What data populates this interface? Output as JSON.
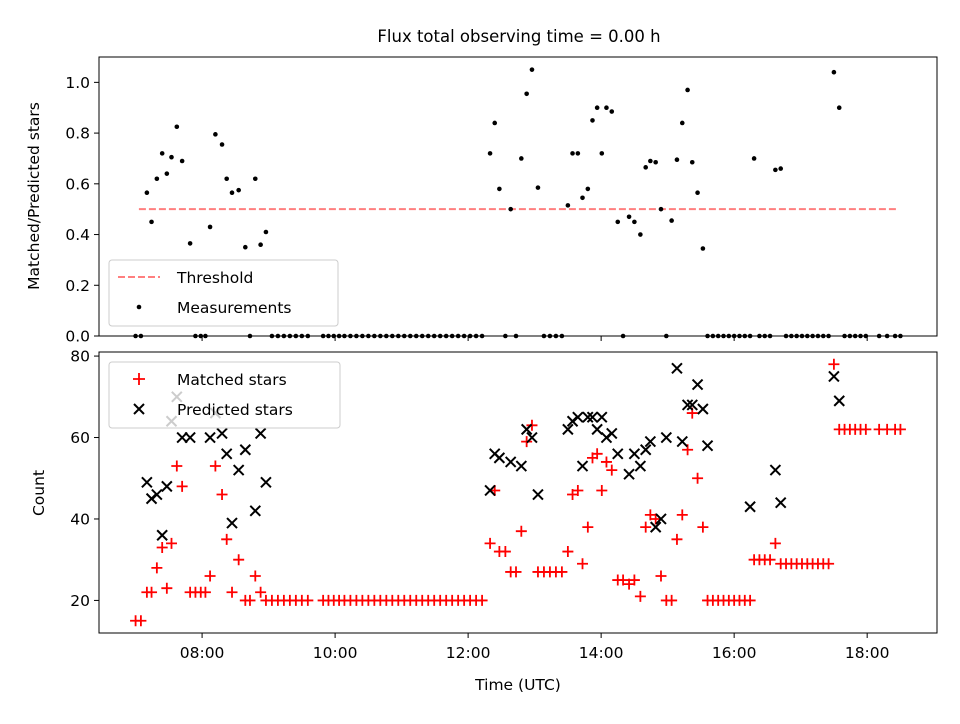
{
  "figure": {
    "title": "Flux total observing time = 0.00 h",
    "xlabel": "Time (UTC)"
  },
  "chart_data": [
    {
      "type": "scatter",
      "title": "Flux total observing time = 0.00 h",
      "xlabel": "",
      "ylabel": "Matched/Predicted stars",
      "x_unit": "hours UTC",
      "xlim": [
        6.45,
        19.05
      ],
      "ylim": [
        0.0,
        1.1
      ],
      "x_ticks": [
        8,
        10,
        12,
        14,
        16,
        18
      ],
      "x_tick_labels": [
        "08:00",
        "10:00",
        "12:00",
        "14:00",
        "16:00",
        "18:00"
      ],
      "y_ticks": [
        0.0,
        0.2,
        0.4,
        0.6,
        0.8,
        1.0
      ],
      "y_tick_labels": [
        "0.0",
        "0.2",
        "0.4",
        "0.6",
        "0.8",
        "1.0"
      ],
      "grid": false,
      "legend": "lower-left",
      "series": [
        {
          "name": "Threshold",
          "style": "dashed-line",
          "color": "#ff7f7f",
          "x": [
            7.05,
            18.45
          ],
          "y": [
            0.5,
            0.5
          ]
        },
        {
          "name": "Measurements",
          "style": "dot",
          "color": "#000000",
          "x": [
            7.0,
            7.08,
            7.17,
            7.24,
            7.32,
            7.4,
            7.47,
            7.54,
            7.62,
            7.7,
            7.82,
            7.9,
            7.98,
            8.05,
            8.12,
            8.2,
            8.3,
            8.37,
            8.45,
            8.55,
            8.65,
            8.72,
            8.8,
            8.88,
            8.96,
            9.05,
            9.14,
            9.23,
            9.32,
            9.41,
            9.5,
            9.59,
            9.82,
            9.9,
            9.98,
            10.06,
            10.14,
            10.23,
            10.32,
            10.41,
            10.5,
            10.59,
            10.68,
            10.77,
            10.86,
            10.95,
            11.04,
            11.13,
            11.22,
            11.31,
            11.4,
            11.49,
            11.58,
            11.67,
            11.76,
            11.85,
            11.94,
            12.03,
            12.12,
            12.21,
            12.33,
            12.4,
            12.47,
            12.56,
            12.64,
            12.72,
            12.8,
            12.88,
            12.96,
            13.05,
            13.14,
            13.23,
            13.32,
            13.41,
            13.5,
            13.57,
            13.65,
            13.72,
            13.8,
            13.87,
            13.94,
            14.01,
            14.08,
            14.16,
            14.25,
            14.33,
            14.42,
            14.5,
            14.59,
            14.67,
            14.74,
            14.82,
            14.9,
            14.98,
            15.06,
            15.14,
            15.22,
            15.3,
            15.37,
            15.45,
            15.53,
            15.6,
            15.68,
            15.76,
            15.84,
            15.92,
            16.0,
            16.08,
            16.16,
            16.24,
            16.3,
            16.38,
            16.46,
            16.54,
            16.62,
            16.7,
            16.78,
            16.86,
            16.94,
            17.02,
            17.1,
            17.18,
            17.26,
            17.34,
            17.42,
            17.5,
            17.58,
            17.66,
            17.74,
            17.82,
            17.9,
            17.98,
            18.18,
            18.3,
            18.42,
            18.5
          ],
          "y": [
            0.0,
            0.0,
            0.565,
            0.45,
            0.62,
            0.72,
            0.64,
            0.705,
            0.825,
            0.69,
            0.365,
            0.0,
            0.0,
            0.0,
            0.43,
            0.795,
            0.755,
            0.62,
            0.565,
            0.575,
            0.35,
            0.0,
            0.62,
            0.36,
            0.41,
            0.0,
            0.0,
            0.0,
            0.0,
            0.0,
            0.0,
            0.0,
            0.0,
            0.0,
            0.0,
            0.0,
            0.0,
            0.0,
            0.0,
            0.0,
            0.0,
            0.0,
            0.0,
            0.0,
            0.0,
            0.0,
            0.0,
            0.0,
            0.0,
            0.0,
            0.0,
            0.0,
            0.0,
            0.0,
            0.0,
            0.0,
            0.0,
            0.0,
            0.0,
            0.0,
            0.72,
            0.84,
            0.58,
            0.0,
            0.5,
            0.0,
            0.7,
            0.955,
            1.05,
            0.585,
            0.0,
            0.0,
            0.0,
            0.0,
            0.515,
            0.72,
            0.72,
            0.545,
            0.58,
            0.85,
            0.9,
            0.72,
            0.9,
            0.885,
            0.45,
            0.0,
            0.47,
            0.45,
            0.4,
            0.665,
            0.69,
            0.685,
            0.5,
            0.0,
            0.455,
            0.695,
            0.84,
            0.97,
            0.685,
            0.565,
            0.345,
            0.0,
            0.0,
            0.0,
            0.0,
            0.0,
            0.0,
            0.0,
            0.0,
            0.0,
            0.7,
            0.0,
            0.0,
            0.0,
            0.655,
            0.66,
            0.0,
            0.0,
            0.0,
            0.0,
            0.0,
            0.0,
            0.0,
            0.0,
            0.0,
            1.04,
            0.9,
            0.0,
            0.0,
            0.0,
            0.0,
            0.0,
            0.0,
            0.0,
            0.0,
            0.0
          ]
        }
      ]
    },
    {
      "type": "scatter",
      "title": "",
      "xlabel": "Time (UTC)",
      "ylabel": "Count",
      "x_unit": "hours UTC",
      "xlim": [
        6.45,
        19.05
      ],
      "ylim": [
        12,
        81
      ],
      "x_ticks": [
        8,
        10,
        12,
        14,
        16,
        18
      ],
      "x_tick_labels": [
        "08:00",
        "10:00",
        "12:00",
        "14:00",
        "16:00",
        "18:00"
      ],
      "y_ticks": [
        20,
        40,
        60,
        80
      ],
      "y_tick_labels": [
        "20",
        "40",
        "60",
        "80"
      ],
      "grid": false,
      "legend": "top-left",
      "series": [
        {
          "name": "Matched stars",
          "style": "plus",
          "color": "#ff0000",
          "x": [
            7.0,
            7.08,
            7.17,
            7.24,
            7.32,
            7.4,
            7.47,
            7.54,
            7.62,
            7.7,
            7.82,
            7.9,
            7.98,
            8.05,
            8.12,
            8.2,
            8.3,
            8.37,
            8.45,
            8.55,
            8.65,
            8.72,
            8.8,
            8.88,
            8.96,
            9.05,
            9.14,
            9.23,
            9.32,
            9.41,
            9.5,
            9.59,
            9.82,
            9.9,
            9.98,
            10.06,
            10.14,
            10.23,
            10.32,
            10.41,
            10.5,
            10.59,
            10.68,
            10.77,
            10.86,
            10.95,
            11.04,
            11.13,
            11.22,
            11.31,
            11.4,
            11.49,
            11.58,
            11.67,
            11.76,
            11.85,
            11.94,
            12.03,
            12.12,
            12.21,
            12.33,
            12.4,
            12.47,
            12.56,
            12.64,
            12.72,
            12.8,
            12.88,
            12.96,
            13.05,
            13.14,
            13.23,
            13.32,
            13.41,
            13.5,
            13.57,
            13.65,
            13.72,
            13.8,
            13.87,
            13.94,
            14.01,
            14.08,
            14.16,
            14.25,
            14.33,
            14.42,
            14.5,
            14.59,
            14.67,
            14.74,
            14.82,
            14.9,
            14.98,
            15.06,
            15.14,
            15.22,
            15.3,
            15.37,
            15.45,
            15.53,
            15.6,
            15.68,
            15.76,
            15.84,
            15.92,
            16.0,
            16.08,
            16.16,
            16.24,
            16.3,
            16.38,
            16.46,
            16.54,
            16.62,
            16.7,
            16.78,
            16.86,
            16.94,
            17.02,
            17.1,
            17.18,
            17.26,
            17.34,
            17.42,
            17.5,
            17.58,
            17.66,
            17.74,
            17.82,
            17.9,
            17.98,
            18.18,
            18.3,
            18.42,
            18.5
          ],
          "y": [
            15,
            15,
            22,
            22,
            28,
            33,
            23,
            34,
            53,
            48,
            22,
            22,
            22,
            22,
            26,
            53,
            46,
            35,
            22,
            30,
            20,
            20,
            26,
            22,
            20,
            20,
            20,
            20,
            20,
            20,
            20,
            20,
            20,
            20,
            20,
            20,
            20,
            20,
            20,
            20,
            20,
            20,
            20,
            20,
            20,
            20,
            20,
            20,
            20,
            20,
            20,
            20,
            20,
            20,
            20,
            20,
            20,
            20,
            20,
            20,
            34,
            47,
            32,
            32,
            27,
            27,
            37,
            59,
            63,
            27,
            27,
            27,
            27,
            27,
            32,
            46,
            47,
            29,
            38,
            55,
            56,
            47,
            54,
            52,
            25,
            25,
            24,
            25,
            21,
            38,
            41,
            40,
            26,
            20,
            20,
            35,
            41,
            57,
            66,
            50,
            38,
            20,
            20,
            20,
            20,
            20,
            20,
            20,
            20,
            20,
            30,
            30,
            30,
            30,
            34,
            29,
            29,
            29,
            29,
            29,
            29,
            29,
            29,
            29,
            29,
            78,
            62,
            62,
            62,
            62,
            62,
            62,
            62,
            62,
            62,
            62
          ]
        },
        {
          "name": "Predicted stars",
          "style": "x",
          "color": "#000000",
          "x": [
            7.17,
            7.24,
            7.32,
            7.4,
            7.47,
            7.54,
            7.62,
            7.7,
            7.82,
            8.12,
            8.2,
            8.3,
            8.37,
            8.45,
            8.55,
            8.65,
            8.8,
            8.88,
            8.96,
            12.33,
            12.4,
            12.47,
            12.64,
            12.8,
            12.88,
            12.96,
            13.05,
            13.5,
            13.57,
            13.65,
            13.72,
            13.8,
            13.87,
            13.94,
            14.01,
            14.08,
            14.16,
            14.25,
            14.42,
            14.5,
            14.59,
            14.67,
            14.74,
            14.82,
            14.9,
            14.98,
            15.14,
            15.22,
            15.3,
            15.37,
            15.45,
            15.53,
            15.6,
            16.24,
            16.62,
            16.7,
            17.5,
            17.58
          ],
          "y": [
            49,
            45,
            46,
            36,
            48,
            64,
            70,
            60,
            60,
            60,
            66,
            61,
            56,
            39,
            52,
            57,
            42,
            61,
            49,
            47,
            56,
            55,
            54,
            53,
            62,
            60,
            46,
            62,
            64,
            65,
            53,
            65,
            65,
            62,
            65,
            60,
            61,
            56,
            51,
            56,
            53,
            57,
            59,
            38,
            40,
            60,
            77,
            59,
            68,
            68,
            73,
            67,
            58,
            43,
            52,
            44,
            75,
            69
          ]
        }
      ]
    }
  ]
}
